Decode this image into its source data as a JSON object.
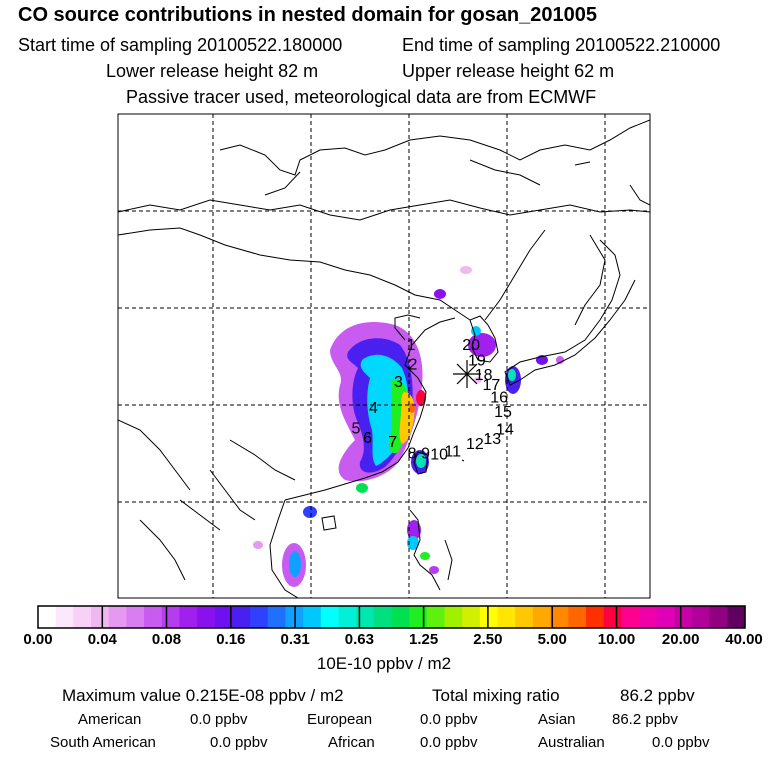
{
  "header": {
    "title": "CO  source contributions in nested domain for gosan_201005",
    "start_label": "Start time of sampling 20100522.180000",
    "end_label": "End time of sampling 20100522.210000",
    "lower_label": "Lower release height   82 m",
    "upper_label": "Upper release height   62 m",
    "note": "Passive tracer used, meteorological data are from ECMWF"
  },
  "map": {
    "receptor_icon": "star-icon",
    "markers": [
      {
        "id": "1",
        "lon": 120.3,
        "lat": 30.6
      },
      {
        "id": "2",
        "lon": 120.5,
        "lat": 28.6
      },
      {
        "id": "3",
        "lon": 119.0,
        "lat": 26.8
      },
      {
        "id": "4",
        "lon": 116.4,
        "lat": 24.1
      },
      {
        "id": "5",
        "lon": 114.6,
        "lat": 22.0
      },
      {
        "id": "6",
        "lon": 115.8,
        "lat": 21.0
      },
      {
        "id": "7",
        "lon": 118.4,
        "lat": 20.6
      },
      {
        "id": "8",
        "lon": 120.4,
        "lat": 19.4
      },
      {
        "id": "9",
        "lon": 121.8,
        "lat": 19.4
      },
      {
        "id": "10",
        "lon": 123.2,
        "lat": 19.3
      },
      {
        "id": "11",
        "lon": 124.6,
        "lat": 19.6
      },
      {
        "id": "12",
        "lon": 126.9,
        "lat": 20.4
      },
      {
        "id": "13",
        "lon": 128.7,
        "lat": 20.9
      },
      {
        "id": "14",
        "lon": 130.0,
        "lat": 21.9
      },
      {
        "id": "15",
        "lon": 129.8,
        "lat": 23.7
      },
      {
        "id": "16",
        "lon": 129.4,
        "lat": 25.2
      },
      {
        "id": "17",
        "lon": 128.6,
        "lat": 26.5
      },
      {
        "id": "18",
        "lon": 127.8,
        "lat": 27.5
      },
      {
        "id": "19",
        "lon": 127.1,
        "lat": 29.0
      },
      {
        "id": "20",
        "lon": 126.5,
        "lat": 30.6
      }
    ]
  },
  "colorbar": {
    "unit_label": "10E-10 ppbv / m2",
    "ticks": [
      "0.00",
      "0.04",
      "0.08",
      "0.16",
      "0.31",
      "0.63",
      "1.25",
      "2.50",
      "5.00",
      "10.00",
      "20.00",
      "40.00"
    ],
    "colors": [
      "#ffffff",
      "#fce8fc",
      "#f8d0f8",
      "#f0b8f0",
      "#e699f0",
      "#d97ef0",
      "#c85cf0",
      "#b53cf0",
      "#a020f0",
      "#8a10ee",
      "#6f10ee",
      "#4a20f0",
      "#3040ff",
      "#2070ff",
      "#10a0ff",
      "#00c8ff",
      "#00ffff",
      "#00f0d8",
      "#00e8b0",
      "#00e080",
      "#00e050",
      "#20ee20",
      "#60f010",
      "#a0f000",
      "#d0f000",
      "#ffff00",
      "#ffe600",
      "#ffc800",
      "#ffa800",
      "#ff8800",
      "#ff6600",
      "#ff3000",
      "#ff0040",
      "#ff0090",
      "#f000a8",
      "#e000b8",
      "#c800a8",
      "#b00098",
      "#900080",
      "#600060"
    ]
  },
  "summary": {
    "max_label": "Maximum value  0.215E-08 ppbv / m2",
    "total_label": "Total mixing ratio",
    "total_value": "86.2 ppbv",
    "rows": [
      [
        {
          "label": "American",
          "value": "0.0 ppbv"
        },
        {
          "label": "European",
          "value": "0.0 ppbv"
        },
        {
          "label": "Asian",
          "value": "86.2 ppbv"
        }
      ],
      [
        {
          "label": "South American",
          "value": "0.0 ppbv"
        },
        {
          "label": "African",
          "value": "0.0 ppbv"
        },
        {
          "label": "Australian",
          "value": "0.0 ppbv"
        }
      ]
    ]
  }
}
